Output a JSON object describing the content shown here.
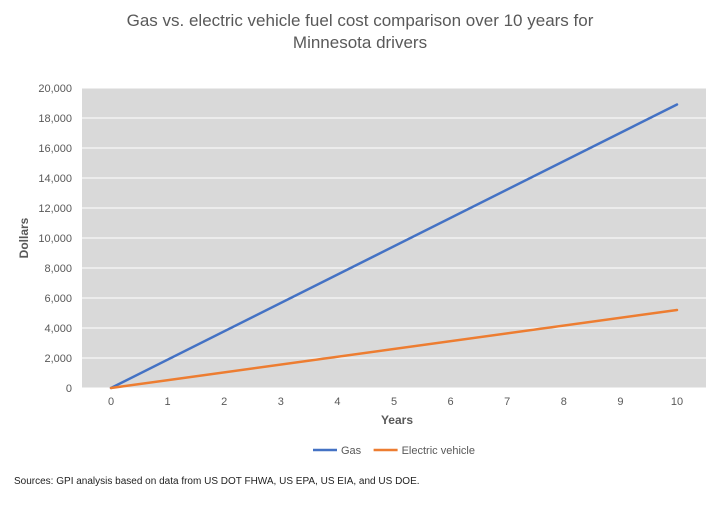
{
  "chart_data": {
    "type": "line",
    "title_lines": [
      "Gas vs. electric vehicle fuel cost comparison over 10 years for",
      "Minnesota drivers"
    ],
    "xlabel": "Years",
    "ylabel": "Dollars",
    "x": [
      0,
      10
    ],
    "xticks": [
      "0",
      "1",
      "2",
      "3",
      "4",
      "5",
      "6",
      "7",
      "8",
      "9",
      "10"
    ],
    "yticks": [
      "0",
      "2,000",
      "4,000",
      "6,000",
      "8,000",
      "10,000",
      "12,000",
      "14,000",
      "16,000",
      "18,000",
      "20,000"
    ],
    "xlim": [
      0,
      10
    ],
    "ylim": [
      0,
      20000
    ],
    "grid": true,
    "legend_position": "bottom",
    "series": [
      {
        "name": "Gas",
        "color": "#4472C4",
        "x": [
          0,
          10
        ],
        "values": [
          0,
          18900
        ]
      },
      {
        "name": "Electric vehicle",
        "color": "#ED7D31",
        "x": [
          0,
          10
        ],
        "values": [
          0,
          5200
        ]
      }
    ]
  },
  "source_note": "Sources: GPI analysis based on data from US DOT FHWA, US EPA, US EIA, and US DOE.",
  "colors": {
    "plot_background": "#D9D9D9",
    "gridline": "#FFFFFF"
  }
}
